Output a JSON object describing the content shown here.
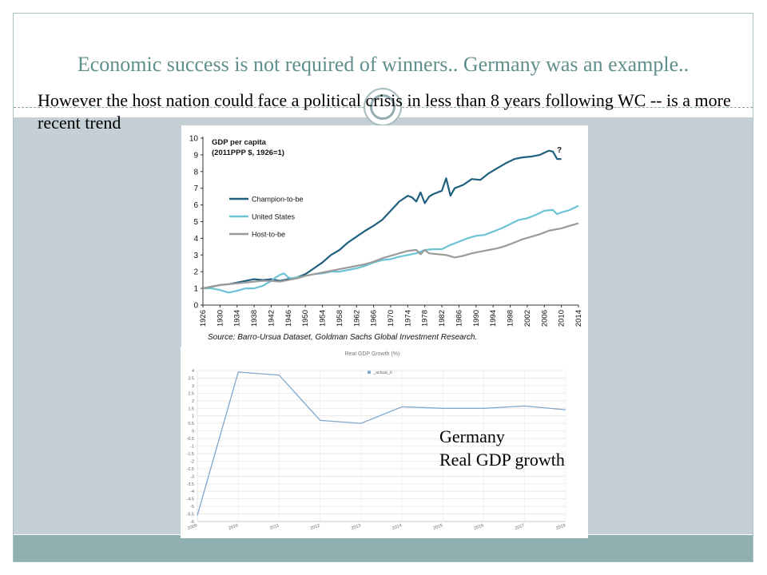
{
  "slide": {
    "title": "Economic success is not required of winners.. Germany was an example..",
    "subtitle": "However the host nation could face a political crisis in less than 8 years following WC  -- is a more recent trend",
    "caption_line1": "Germany",
    "caption_line2": "Real GDP growth",
    "colors": {
      "title": "#5f8f8b",
      "body_band": "#c4d0d6",
      "bottom_band": "#8fb0b0"
    }
  },
  "chart_data": [
    {
      "type": "line",
      "title": "GDP per capita",
      "subtitle": "(2011PPP $, 1926=1)",
      "source": "Source: Barro-Ursua Dataset, Goldman Sachs Global Investment Research.",
      "annotation": "?",
      "xlim": [
        1926,
        2014
      ],
      "ylim": [
        0,
        10
      ],
      "yticks": [
        0,
        1,
        2,
        3,
        4,
        5,
        6,
        7,
        8,
        9,
        10
      ],
      "xticks": [
        1926,
        1930,
        1934,
        1938,
        1942,
        1946,
        1950,
        1954,
        1958,
        1962,
        1966,
        1970,
        1974,
        1978,
        1982,
        1986,
        1990,
        1994,
        1998,
        2002,
        2006,
        2010,
        2014
      ],
      "legend_position": "middle-left",
      "series": [
        {
          "name": "Champion-to-be",
          "color": "#1f5f7f",
          "points": [
            [
              1926,
              1.0
            ],
            [
              1928,
              1.1
            ],
            [
              1930,
              1.2
            ],
            [
              1932,
              1.25
            ],
            [
              1934,
              1.35
            ],
            [
              1936,
              1.45
            ],
            [
              1938,
              1.55
            ],
            [
              1940,
              1.5
            ],
            [
              1942,
              1.55
            ],
            [
              1944,
              1.45
            ],
            [
              1946,
              1.55
            ],
            [
              1948,
              1.65
            ],
            [
              1950,
              1.85
            ],
            [
              1952,
              2.2
            ],
            [
              1954,
              2.55
            ],
            [
              1956,
              3.0
            ],
            [
              1958,
              3.3
            ],
            [
              1960,
              3.75
            ],
            [
              1962,
              4.1
            ],
            [
              1964,
              4.45
            ],
            [
              1966,
              4.75
            ],
            [
              1968,
              5.1
            ],
            [
              1970,
              5.65
            ],
            [
              1972,
              6.2
            ],
            [
              1974,
              6.55
            ],
            [
              1975,
              6.45
            ],
            [
              1976,
              6.2
            ],
            [
              1977,
              6.75
            ],
            [
              1978,
              6.1
            ],
            [
              1979,
              6.5
            ],
            [
              1980,
              6.65
            ],
            [
              1982,
              6.85
            ],
            [
              1983,
              7.6
            ],
            [
              1984,
              6.55
            ],
            [
              1985,
              7.0
            ],
            [
              1987,
              7.2
            ],
            [
              1989,
              7.55
            ],
            [
              1991,
              7.5
            ],
            [
              1993,
              7.9
            ],
            [
              1995,
              8.2
            ],
            [
              1997,
              8.5
            ],
            [
              1999,
              8.75
            ],
            [
              2001,
              8.85
            ],
            [
              2003,
              8.9
            ],
            [
              2005,
              9.0
            ],
            [
              2007,
              9.25
            ],
            [
              2008,
              9.2
            ],
            [
              2009,
              8.75
            ],
            [
              2010,
              8.75
            ]
          ]
        },
        {
          "name": "United States",
          "color": "#6cc3d5",
          "points": [
            [
              1926,
              1.0
            ],
            [
              1928,
              1.0
            ],
            [
              1930,
              0.9
            ],
            [
              1932,
              0.75
            ],
            [
              1934,
              0.85
            ],
            [
              1936,
              1.0
            ],
            [
              1938,
              1.0
            ],
            [
              1940,
              1.15
            ],
            [
              1942,
              1.45
            ],
            [
              1943,
              1.65
            ],
            [
              1944,
              1.8
            ],
            [
              1945,
              1.9
            ],
            [
              1946,
              1.65
            ],
            [
              1947,
              1.6
            ],
            [
              1948,
              1.65
            ],
            [
              1950,
              1.75
            ],
            [
              1952,
              1.85
            ],
            [
              1954,
              1.9
            ],
            [
              1956,
              2.0
            ],
            [
              1958,
              2.0
            ],
            [
              1960,
              2.1
            ],
            [
              1962,
              2.2
            ],
            [
              1964,
              2.35
            ],
            [
              1966,
              2.55
            ],
            [
              1968,
              2.7
            ],
            [
              1970,
              2.75
            ],
            [
              1972,
              2.9
            ],
            [
              1974,
              3.0
            ],
            [
              1976,
              3.1
            ],
            [
              1978,
              3.3
            ],
            [
              1980,
              3.35
            ],
            [
              1982,
              3.35
            ],
            [
              1984,
              3.6
            ],
            [
              1986,
              3.8
            ],
            [
              1988,
              4.0
            ],
            [
              1990,
              4.15
            ],
            [
              1992,
              4.2
            ],
            [
              1994,
              4.4
            ],
            [
              1996,
              4.6
            ],
            [
              1998,
              4.85
            ],
            [
              2000,
              5.1
            ],
            [
              2002,
              5.2
            ],
            [
              2004,
              5.4
            ],
            [
              2006,
              5.65
            ],
            [
              2008,
              5.7
            ],
            [
              2009,
              5.45
            ],
            [
              2010,
              5.55
            ],
            [
              2012,
              5.7
            ],
            [
              2014,
              5.95
            ]
          ]
        },
        {
          "name": "Host-to-be",
          "color": "#9a9a9a",
          "points": [
            [
              1926,
              1.0
            ],
            [
              1928,
              1.1
            ],
            [
              1930,
              1.2
            ],
            [
              1932,
              1.25
            ],
            [
              1934,
              1.3
            ],
            [
              1936,
              1.35
            ],
            [
              1938,
              1.4
            ],
            [
              1940,
              1.45
            ],
            [
              1942,
              1.45
            ],
            [
              1944,
              1.4
            ],
            [
              1946,
              1.5
            ],
            [
              1948,
              1.6
            ],
            [
              1950,
              1.75
            ],
            [
              1952,
              1.85
            ],
            [
              1954,
              1.95
            ],
            [
              1956,
              2.05
            ],
            [
              1958,
              2.15
            ],
            [
              1960,
              2.25
            ],
            [
              1962,
              2.35
            ],
            [
              1964,
              2.45
            ],
            [
              1966,
              2.6
            ],
            [
              1968,
              2.8
            ],
            [
              1970,
              2.95
            ],
            [
              1972,
              3.1
            ],
            [
              1974,
              3.25
            ],
            [
              1976,
              3.3
            ],
            [
              1977,
              3.05
            ],
            [
              1978,
              3.3
            ],
            [
              1979,
              3.1
            ],
            [
              1981,
              3.05
            ],
            [
              1983,
              3.0
            ],
            [
              1985,
              2.85
            ],
            [
              1987,
              2.95
            ],
            [
              1989,
              3.1
            ],
            [
              1991,
              3.2
            ],
            [
              1993,
              3.3
            ],
            [
              1995,
              3.4
            ],
            [
              1997,
              3.55
            ],
            [
              1999,
              3.75
            ],
            [
              2001,
              3.95
            ],
            [
              2003,
              4.1
            ],
            [
              2005,
              4.25
            ],
            [
              2007,
              4.45
            ],
            [
              2009,
              4.55
            ],
            [
              2010,
              4.6
            ],
            [
              2012,
              4.75
            ],
            [
              2014,
              4.9
            ]
          ]
        }
      ]
    },
    {
      "type": "line",
      "title": "Real GDP Growth (%)",
      "legend": [
        "_actual_0"
      ],
      "color": "#7fa8cc",
      "categories": [
        "2009",
        "2010",
        "2011",
        "2012",
        "2013",
        "2014",
        "2015",
        "2016",
        "2017",
        "2018"
      ],
      "values": [
        -5.6,
        3.9,
        3.7,
        0.7,
        0.5,
        1.6,
        1.5,
        1.5,
        1.65,
        1.4
      ],
      "ylim": [
        -6,
        4
      ],
      "yticks": [
        "4",
        "3.5",
        "3",
        "2.5",
        "2",
        "1.5",
        "1",
        "0.5",
        "0",
        "-0.5",
        "-1",
        "-1.5",
        "-2",
        "-2.5",
        "-3",
        "-3.5",
        "-4",
        "-4.5",
        "-5",
        "-5.5",
        "-6"
      ]
    }
  ]
}
